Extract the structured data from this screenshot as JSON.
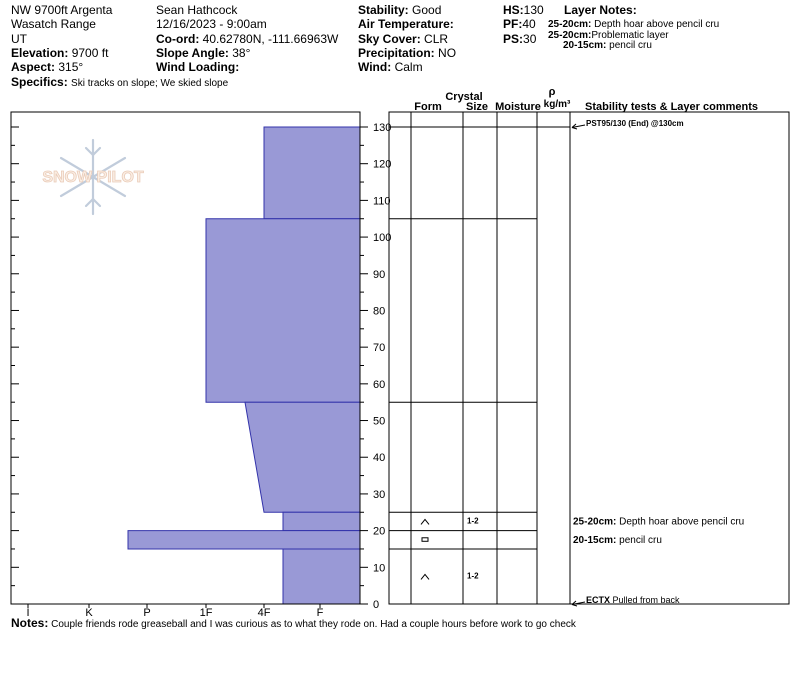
{
  "header": {
    "location": "NW 9700ft Argenta",
    "range": "Wasatch Range",
    "state": "UT",
    "elevation_label": "Elevation:",
    "elevation": "9700 ft",
    "aspect_label": "Aspect:",
    "aspect": "315°",
    "specifics_label": "Specifics:",
    "specifics": "Ski tracks on slope; We skied slope",
    "observer": "Sean Hathcock",
    "datetime": "12/16/2023 - 9:00am",
    "coord_label": "Co-ord:",
    "coord": "40.62780N, -111.66963W",
    "slope_label": "Slope Angle:",
    "slope": "38°",
    "wind_loading_label": "Wind Loading:",
    "wind_loading": "",
    "stability_label": "Stability:",
    "stability": "Good",
    "air_temp_label": "Air Temperature:",
    "air_temp": "",
    "sky_label": "Sky Cover:",
    "sky": "CLR",
    "precip_label": "Precipitation:",
    "precip": "NO",
    "wind_label": "Wind:",
    "wind": "Calm",
    "hs_label": "HS:",
    "hs": "130",
    "pf_label": "PF:",
    "pf": "40",
    "ps_label": "PS:",
    "ps": "30",
    "layer_notes_title": "Layer Notes:",
    "layer_notes": [
      {
        "range": "25-20cm:",
        "text": "Depth hoar above pencil cru"
      },
      {
        "range": "25-20cm:",
        "text": "Problematic layer"
      },
      {
        "range": "20-15cm:",
        "text": "pencil cru"
      }
    ]
  },
  "logo": {
    "text": "SNOW PILOT"
  },
  "columns": {
    "crystal": "Crystal",
    "form": "Form",
    "size": "Size",
    "moisture": "Moisture",
    "rho": "ρ",
    "density_unit": "kg/m³",
    "comments": "Stability tests & Layer comments"
  },
  "notes_label": "Notes:",
  "notes": "Couple friends rode greaseball and I was curious as to what they rode on. Had a couple hours before work to go check",
  "colors": {
    "hardness_fill": "#9999d6",
    "hardness_stroke": "#3333aa"
  },
  "chart_data": {
    "type": "area",
    "title": "",
    "xlabel": "",
    "ylabel": "",
    "y_unit": "cm",
    "ylim": [
      0,
      130
    ],
    "y_ticks": [
      0,
      10,
      20,
      30,
      40,
      50,
      60,
      70,
      80,
      90,
      100,
      110,
      120,
      130
    ],
    "x_categories": [
      "I",
      "K",
      "P",
      "1F",
      "4F",
      "F"
    ],
    "hardness_profile": [
      {
        "top": 130,
        "bottom": 105,
        "hardness_top": "4F",
        "hardness_bottom": "4F"
      },
      {
        "top": 105,
        "bottom": 55,
        "hardness_top": "1F",
        "hardness_bottom": "1F"
      },
      {
        "top": 55,
        "bottom": 25,
        "hardness_top": "4F-",
        "hardness_bottom": "4F"
      },
      {
        "top": 25,
        "bottom": 20,
        "hardness_top": "4F+",
        "hardness_bottom": "4F+"
      },
      {
        "top": 20,
        "bottom": 15,
        "hardness_top": "P-",
        "hardness_bottom": "P-"
      },
      {
        "top": 15,
        "bottom": 0,
        "hardness_top": "4F+",
        "hardness_bottom": "4F+"
      }
    ],
    "layer_boundaries": [
      130,
      105,
      55,
      25,
      20,
      15,
      0
    ],
    "grains": [
      {
        "depth": 22.5,
        "form_icon": "depth-hoar-icon",
        "size": "1-2"
      },
      {
        "depth": 17.5,
        "form_icon": "melt-freeze-crust-icon",
        "size": ""
      },
      {
        "depth": 7.5,
        "form_icon": "depth-hoar-icon",
        "size": "1-2"
      }
    ],
    "tests": [
      {
        "depth": 130,
        "text": "PST95/130 (End) @130cm"
      },
      {
        "depth": 0,
        "label": "ECTX",
        "text": "Pulled from back"
      }
    ],
    "layer_comments": [
      {
        "depth": 22.5,
        "range": "25-20cm:",
        "text": "Depth hoar above pencil cru"
      },
      {
        "depth": 17.5,
        "range": "20-15cm:",
        "text": "pencil cru"
      }
    ]
  }
}
